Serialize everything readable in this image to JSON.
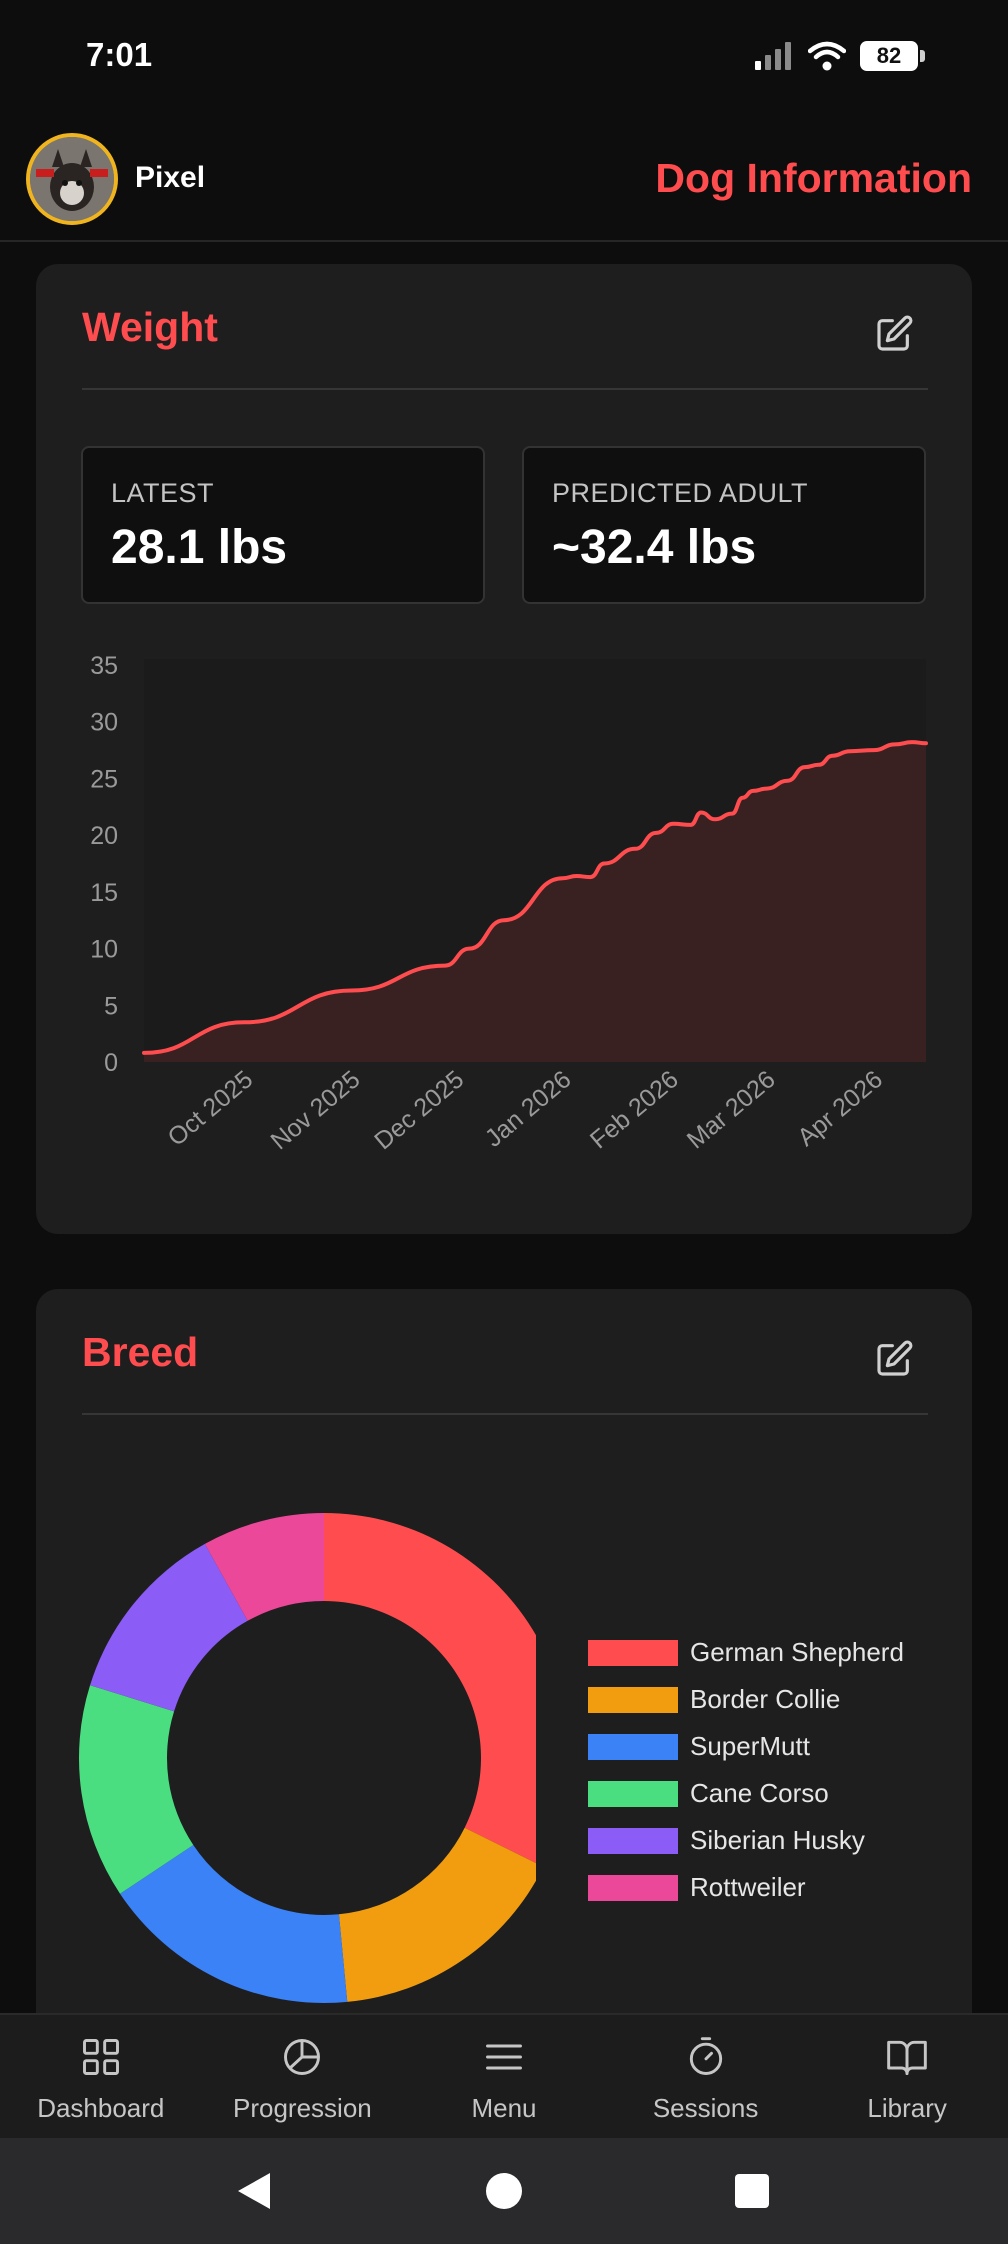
{
  "status_bar": {
    "time": "7:01",
    "battery": "82"
  },
  "header": {
    "dog_name": "Pixel",
    "title": "Dog Information"
  },
  "weight_card": {
    "title": "Weight",
    "latest": {
      "label": "LATEST",
      "value": "28.1 lbs"
    },
    "predicted": {
      "label": "PREDICTED ADULT",
      "value": "~32.4 lbs"
    }
  },
  "breed_card": {
    "title": "Breed"
  },
  "chart_data": [
    {
      "type": "area",
      "title": "",
      "xlabel": "",
      "ylabel": "",
      "ylim": [
        0,
        35
      ],
      "yticks": [
        0,
        5,
        10,
        15,
        20,
        25,
        30,
        35
      ],
      "xticks": [
        "Oct 2025",
        "Nov 2025",
        "Dec 2025",
        "Jan 2026",
        "Feb 2026",
        "Mar 2026",
        "Apr 2026"
      ],
      "grid": false,
      "color": "#ff4d4f",
      "series": [
        {
          "x": [
            "2025-09-02",
            "2025-10-01",
            "2025-11-01",
            "2025-11-28",
            "2025-12-05",
            "2025-12-15",
            "2026-01-01",
            "2026-01-05",
            "2026-01-09",
            "2026-01-13",
            "2026-01-22",
            "2026-01-28",
            "2026-02-02",
            "2026-02-07",
            "2026-02-10",
            "2026-02-14",
            "2026-02-19",
            "2026-02-22",
            "2026-02-25",
            "2026-03-01",
            "2026-03-07",
            "2026-03-12",
            "2026-03-16",
            "2026-03-20",
            "2026-03-25",
            "2026-04-01",
            "2026-04-07",
            "2026-04-12",
            "2026-04-16"
          ],
          "values": [
            0.8,
            3.5,
            6.3,
            8.5,
            10.0,
            12.5,
            16.2,
            16.4,
            16.3,
            17.5,
            18.8,
            20.2,
            21.0,
            20.9,
            22.0,
            21.4,
            21.9,
            23.3,
            23.9,
            24.1,
            24.8,
            26.0,
            26.2,
            27.0,
            27.4,
            27.5,
            28.0,
            28.2,
            28.1
          ]
        }
      ]
    },
    {
      "type": "pie",
      "title": "",
      "legend_position": "right",
      "categories": [
        "German Shepherd",
        "Border Collie",
        "SuperMutt",
        "Cane Corso",
        "Siberian Husky",
        "Rottweiler"
      ],
      "values": [
        32,
        16,
        17,
        14,
        12,
        8
      ],
      "colors": [
        "#ff4d4f",
        "#f29d0f",
        "#3b82f6",
        "#4ade80",
        "#8b5cf6",
        "#ec4899"
      ]
    }
  ],
  "bottom_nav": [
    {
      "label": "Dashboard",
      "icon": "grid-icon"
    },
    {
      "label": "Progression",
      "icon": "pie-chart-icon"
    },
    {
      "label": "Menu",
      "icon": "menu-icon"
    },
    {
      "label": "Sessions",
      "icon": "stopwatch-icon"
    },
    {
      "label": "Library",
      "icon": "book-icon"
    }
  ]
}
